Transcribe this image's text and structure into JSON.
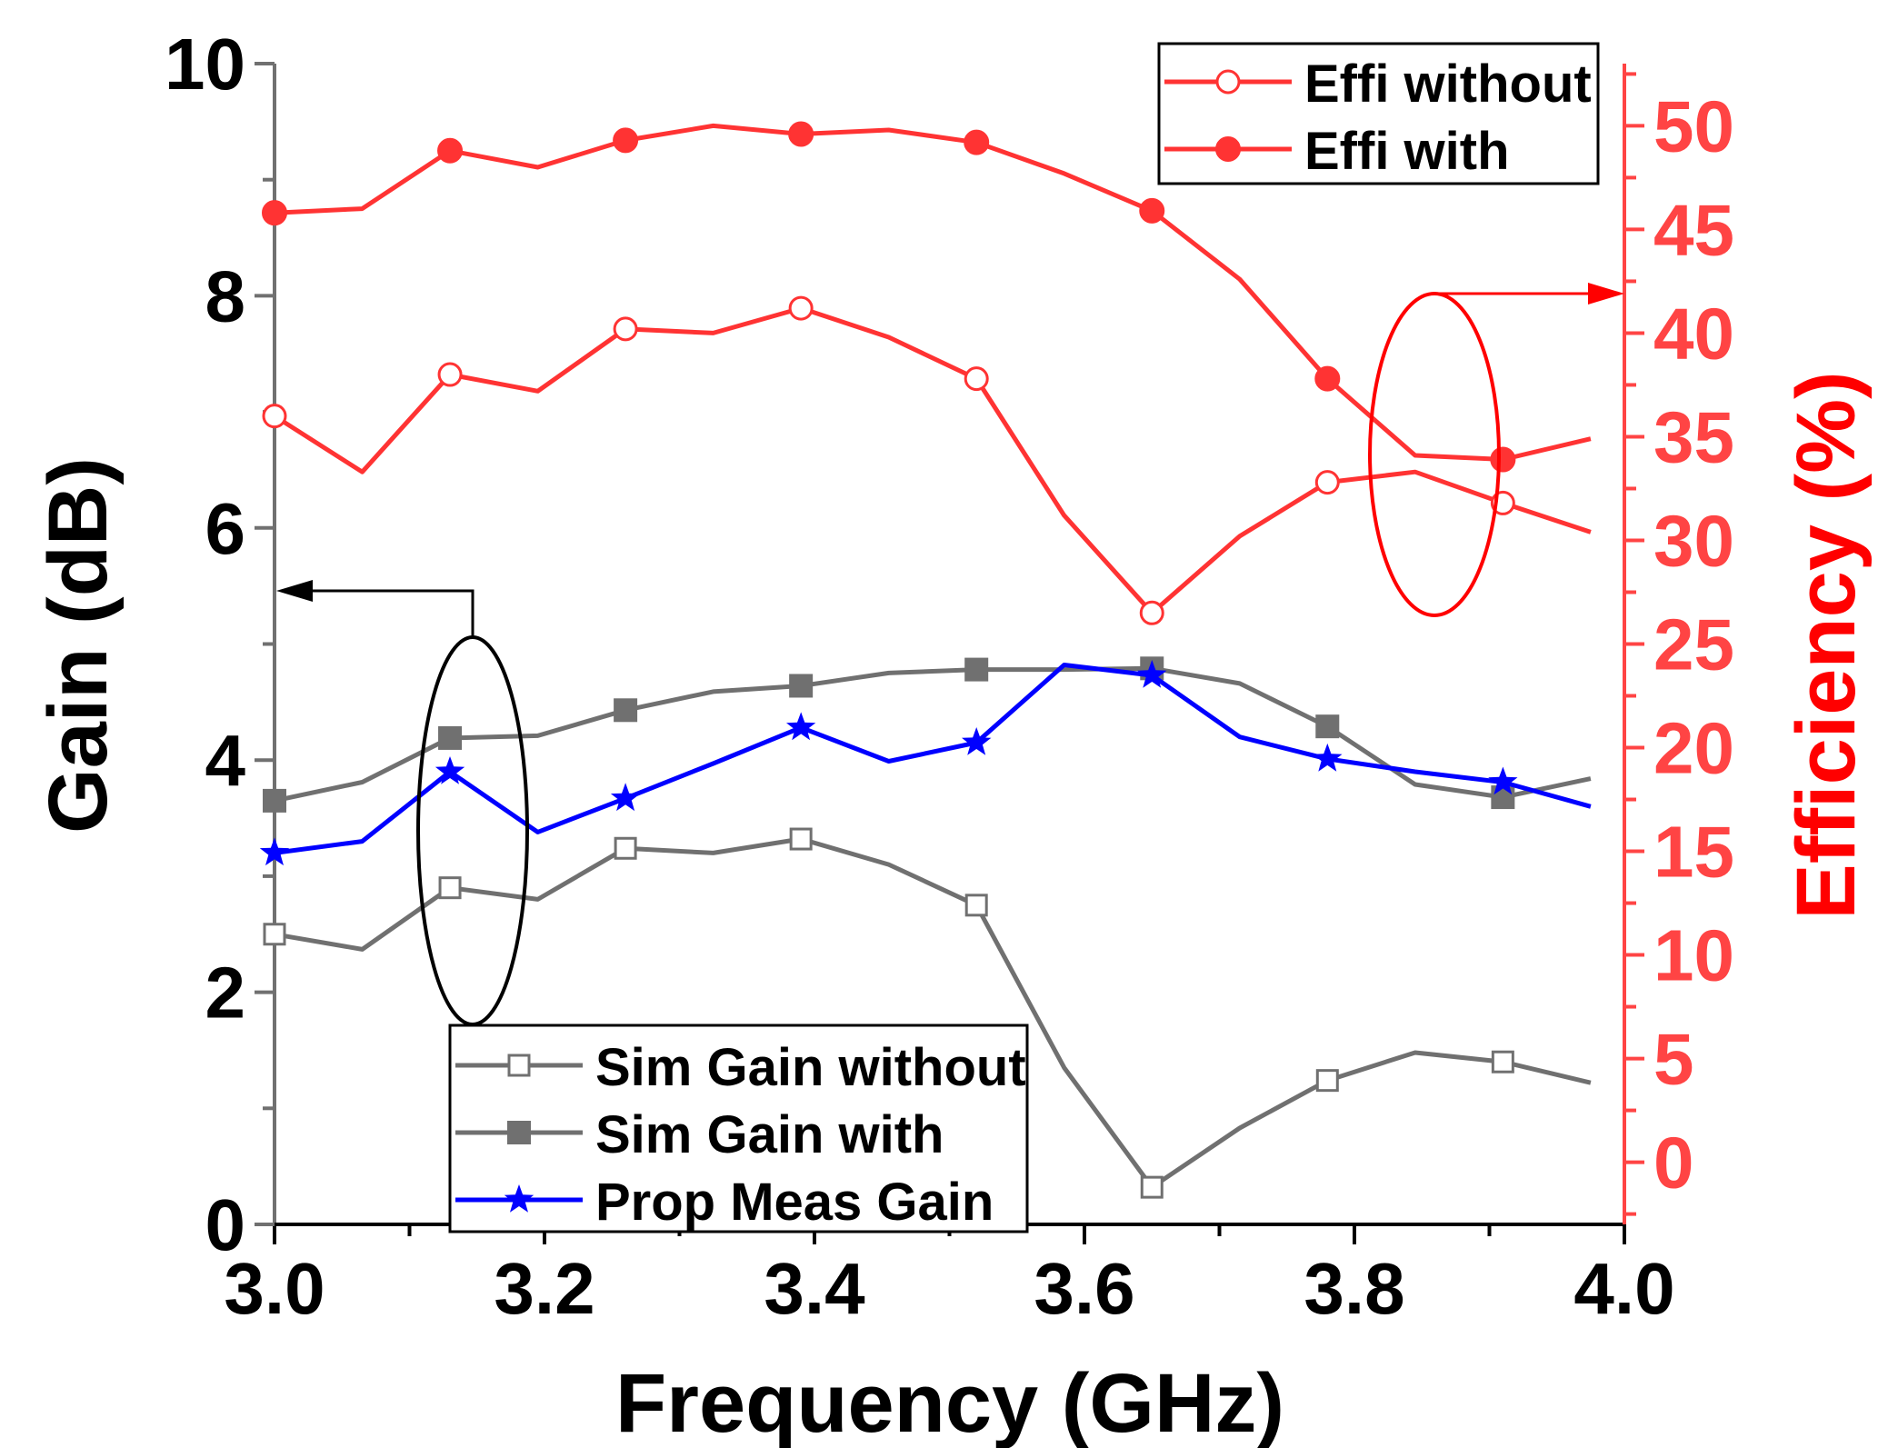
{
  "chart_data": {
    "type": "line",
    "xlabel": "Frequency (GHz)",
    "ylabel": "Gain (dB)",
    "y2label": "Efficiency (%)",
    "xlim": [
      3.0,
      4.0
    ],
    "ylim": [
      0,
      10
    ],
    "y2lim": [
      -3,
      53
    ],
    "x_ticks": [
      "3.0",
      "3.2",
      "3.4",
      "3.6",
      "3.8",
      "4.0"
    ],
    "y_ticks": [
      "0",
      "2",
      "4",
      "6",
      "8",
      "10"
    ],
    "y2_ticks": [
      "0",
      "5",
      "10",
      "15",
      "20",
      "25",
      "30",
      "35",
      "40",
      "45",
      "50"
    ],
    "x": [
      3.0,
      3.065,
      3.13,
      3.195,
      3.26,
      3.325,
      3.39,
      3.455,
      3.52,
      3.585,
      3.65,
      3.715,
      3.78,
      3.845,
      3.91,
      3.975
    ],
    "series": [
      {
        "name": "Sim Gain without",
        "axis": "left",
        "color": "#707070",
        "marker": "square-open",
        "marker_every": 2,
        "values": [
          2.5,
          2.37,
          2.9,
          2.8,
          3.24,
          3.2,
          3.32,
          3.1,
          2.75,
          1.35,
          0.32,
          0.83,
          1.24,
          1.48,
          1.4,
          1.22
        ]
      },
      {
        "name": "Sim Gain with",
        "axis": "left",
        "color": "#707070",
        "marker": "square-filled",
        "marker_every": 2,
        "values": [
          3.65,
          3.81,
          4.19,
          4.21,
          4.43,
          4.59,
          4.64,
          4.75,
          4.78,
          4.78,
          4.79,
          4.66,
          4.29,
          3.79,
          3.68,
          3.84
        ]
      },
      {
        "name": "Prop Meas Gain",
        "axis": "left",
        "color": "#0000ff",
        "marker": "star",
        "marker_every": 2,
        "values": [
          3.2,
          3.3,
          3.9,
          3.38,
          3.67,
          3.97,
          4.28,
          3.99,
          4.15,
          4.82,
          4.73,
          4.2,
          4.01,
          3.9,
          3.81,
          3.6
        ]
      },
      {
        "name": "Effi without",
        "axis": "right",
        "color": "#ff3333",
        "marker": "circle-open",
        "marker_every": 2,
        "values": [
          36,
          33.3,
          38,
          37.2,
          40.2,
          40,
          41.2,
          39.8,
          37.8,
          31.2,
          26.5,
          30.2,
          32.8,
          33.3,
          31.8,
          30.4
        ]
      },
      {
        "name": "Effi with",
        "axis": "right",
        "color": "#ff3333",
        "marker": "circle-filled",
        "marker_every": 2,
        "values": [
          45.8,
          46,
          48.8,
          48,
          49.3,
          50,
          49.6,
          49.8,
          49.2,
          47.7,
          45.9,
          42.6,
          37.8,
          34.1,
          33.9,
          34.9
        ]
      }
    ],
    "annotations": [
      {
        "type": "ellipse-arrow",
        "points_to": "left axis",
        "color": "#000000"
      },
      {
        "type": "ellipse-arrow",
        "points_to": "right axis",
        "color": "#ff0000"
      }
    ],
    "legend_bottom": [
      "Sim Gain without",
      "Sim Gain with",
      "Prop Meas Gain"
    ],
    "legend_top": [
      "Effi without",
      "Effi with"
    ],
    "colors": {
      "left_axis": "#707070",
      "right_axis": "#ff4444",
      "right_label": "#ff0000"
    }
  }
}
